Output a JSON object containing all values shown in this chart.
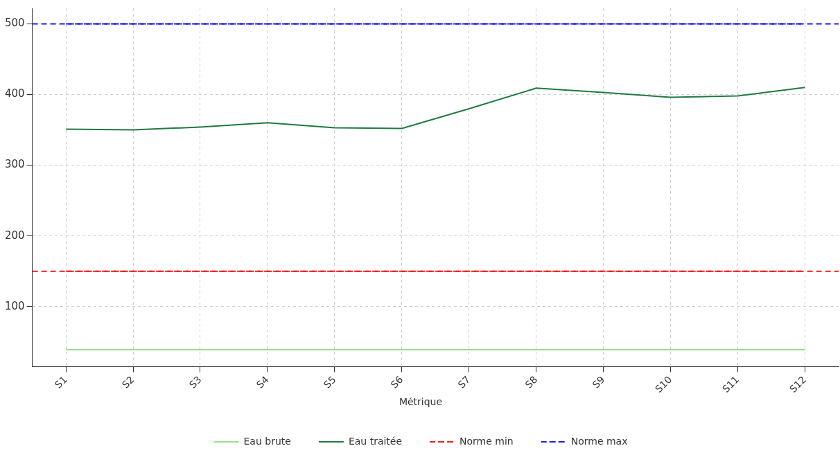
{
  "chart_data": {
    "type": "line",
    "categories": [
      "S1",
      "S2",
      "S3",
      "S4",
      "S5",
      "S6",
      "S7",
      "S8",
      "S9",
      "S10",
      "S11",
      "S12"
    ],
    "series": [
      {
        "name": "Eau brute",
        "color": "#98df8a",
        "values": [
          39,
          39,
          39,
          39,
          39,
          39,
          39,
          39,
          39,
          39,
          39,
          39
        ]
      },
      {
        "name": "Eau traitée",
        "color": "#1f7a3f",
        "values": [
          351,
          350,
          354,
          360,
          353,
          352,
          380,
          409,
          403,
          396,
          398,
          410
        ]
      }
    ],
    "ref_lines": [
      {
        "axis": "y",
        "value": 150,
        "label": "Norme min",
        "color": "#ee1c1c",
        "line_style": "dashed"
      },
      {
        "axis": "y",
        "value": 500,
        "label": "Norme max",
        "color": "#1c1cee",
        "line_style": "dashed"
      }
    ],
    "ylim": [
      15,
      522
    ],
    "yticks": [
      100,
      200,
      300,
      400,
      500
    ],
    "grid": true,
    "legend": "bottom",
    "legend_title": "Métrique",
    "marker": "none",
    "line_style": "solid"
  }
}
